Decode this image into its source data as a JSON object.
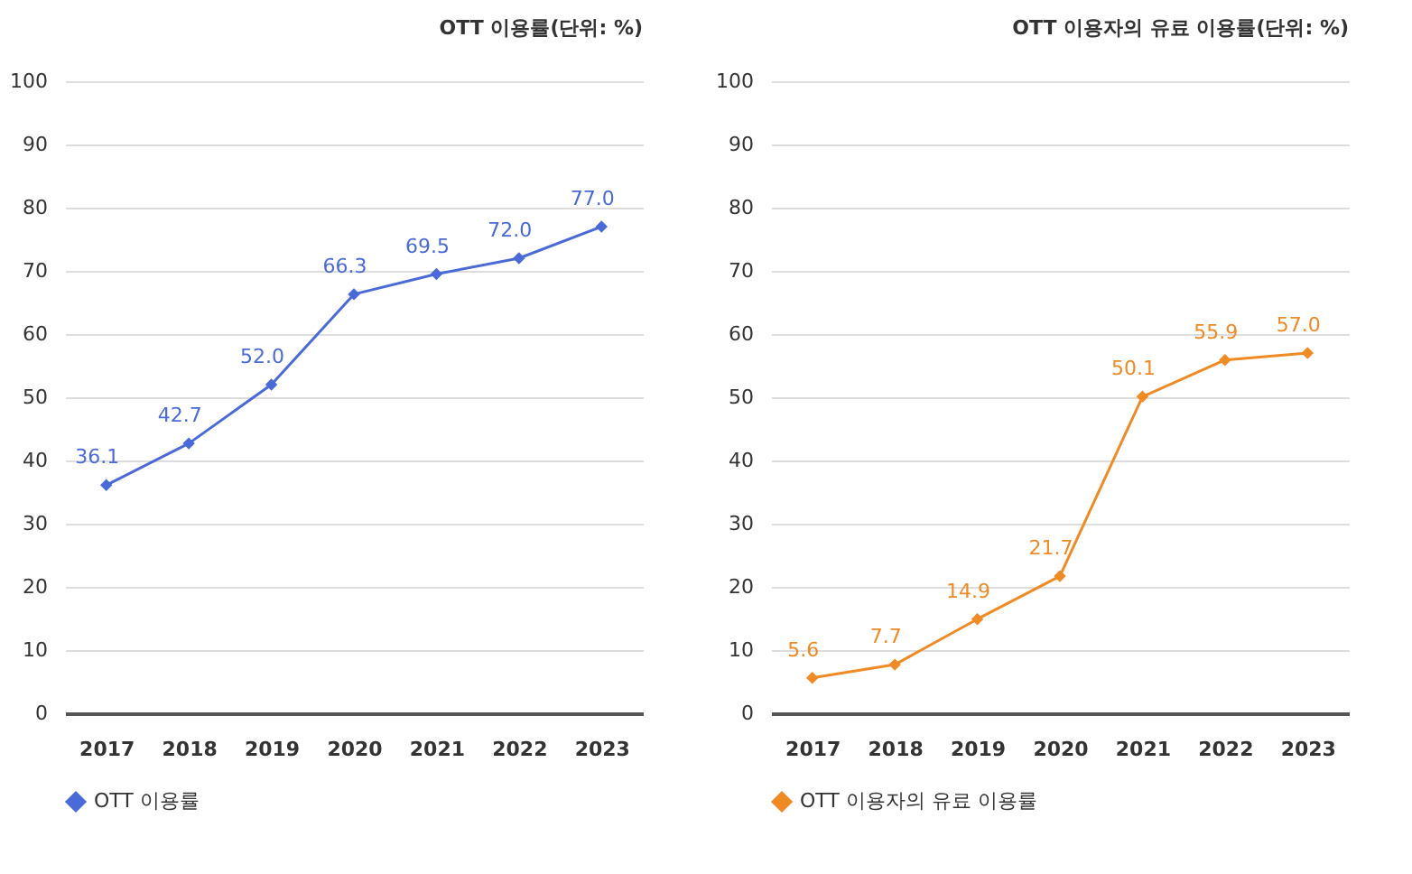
{
  "chart_data": [
    {
      "type": "line",
      "title": "OTT 이용률(단위: %)",
      "categories": [
        "2017",
        "2018",
        "2019",
        "2020",
        "2021",
        "2022",
        "2023"
      ],
      "series": [
        {
          "name": "OTT 이용률",
          "color": "#4a6ad8",
          "values": [
            36.1,
            42.7,
            52.0,
            66.3,
            69.5,
            72.0,
            77.0
          ],
          "value_labels": [
            "36.1",
            "42.7",
            "52.0",
            "66.3",
            "69.5",
            "72.0",
            "77.0"
          ]
        }
      ],
      "ylim": [
        0,
        100
      ],
      "yticks": [
        0,
        10,
        20,
        30,
        40,
        50,
        60,
        70,
        80,
        90,
        100
      ],
      "grid": "y",
      "legend": "bottom",
      "marker": "diamond"
    },
    {
      "type": "line",
      "title": "OTT 이용자의 유료 이용률(단위: %)",
      "categories": [
        "2017",
        "2018",
        "2019",
        "2020",
        "2021",
        "2022",
        "2023"
      ],
      "series": [
        {
          "name": "OTT 이용자의 유료 이용률",
          "color": "#f08a24",
          "values": [
            5.6,
            7.7,
            14.9,
            21.7,
            50.1,
            55.9,
            57.0
          ],
          "value_labels": [
            "5.6",
            "7.7",
            "14.9",
            "21.7",
            "50.1",
            "55.9",
            "57.0"
          ]
        }
      ],
      "ylim": [
        0,
        100
      ],
      "yticks": [
        0,
        10,
        20,
        30,
        40,
        50,
        60,
        70,
        80,
        90,
        100
      ],
      "grid": "y",
      "legend": "bottom",
      "marker": "diamond"
    }
  ]
}
